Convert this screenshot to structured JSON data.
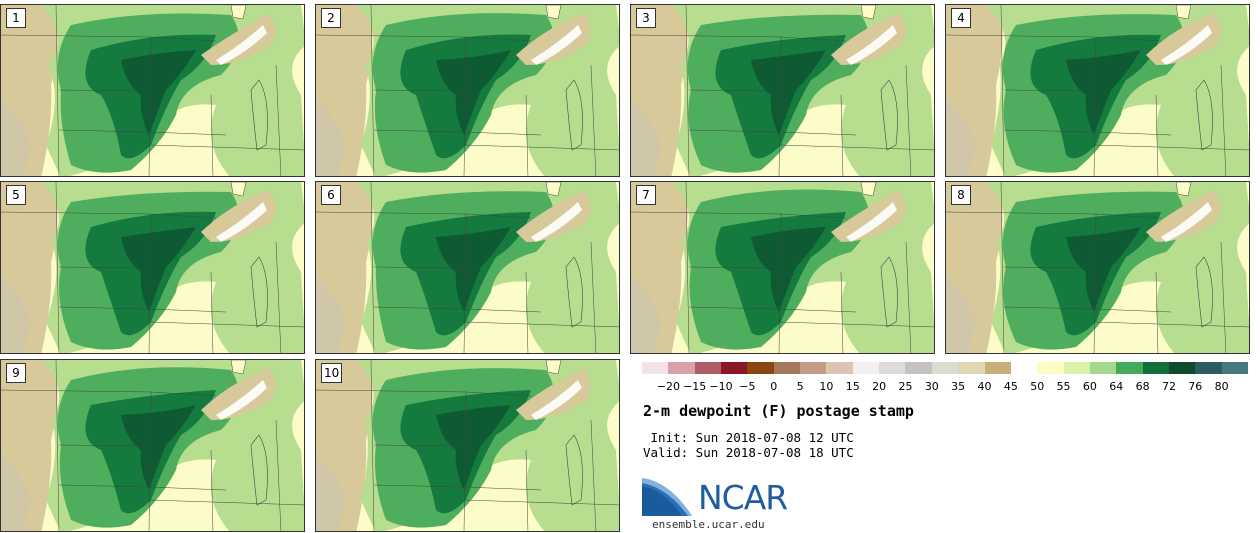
{
  "panels": [
    {
      "label": "1"
    },
    {
      "label": "2"
    },
    {
      "label": "3"
    },
    {
      "label": "4"
    },
    {
      "label": "5"
    },
    {
      "label": "6"
    },
    {
      "label": "7"
    },
    {
      "label": "8"
    },
    {
      "label": "9"
    },
    {
      "label": "10"
    }
  ],
  "colorbar": {
    "ticks": [
      "−20",
      "−15",
      "−10",
      "−5",
      "0",
      "5",
      "10",
      "15",
      "20",
      "25",
      "30",
      "35",
      "40",
      "45",
      "50",
      "55",
      "60",
      "64",
      "68",
      "72",
      "76",
      "80"
    ],
    "colors": [
      "#f6e3ea",
      "#d6a2a6",
      "#b05c66",
      "#8a1626",
      "#8a4511",
      "#a5785d",
      "#c49c86",
      "#dcc3b4",
      "#f0f0f0",
      "#dcdcdc",
      "#c2c2c2",
      "#dadcd0",
      "#e0d6b4",
      "#c6b07a",
      "#ffffff",
      "#fcfcc4",
      "#dcf0a8",
      "#a4d88c",
      "#44aa5e",
      "#11703a",
      "#0e4a30",
      "#2c5c60",
      "#467a80"
    ]
  },
  "title": "2-m dewpoint (F) postage stamp",
  "init_line": " Init: Sun 2018-07-08 12 UTC",
  "valid_line": "Valid: Sun 2018-07-08 18 UTC",
  "logo": {
    "text": "NCAR",
    "site": "ensemble.ucar.edu"
  },
  "map_colors": {
    "dry": "#d8c99a",
    "pale": "#fcfcc8",
    "light": "#b6de8e",
    "mid": "#4fae5e",
    "dark": "#157a3e",
    "deep": "#0e5a32",
    "water": "#ffffff"
  }
}
